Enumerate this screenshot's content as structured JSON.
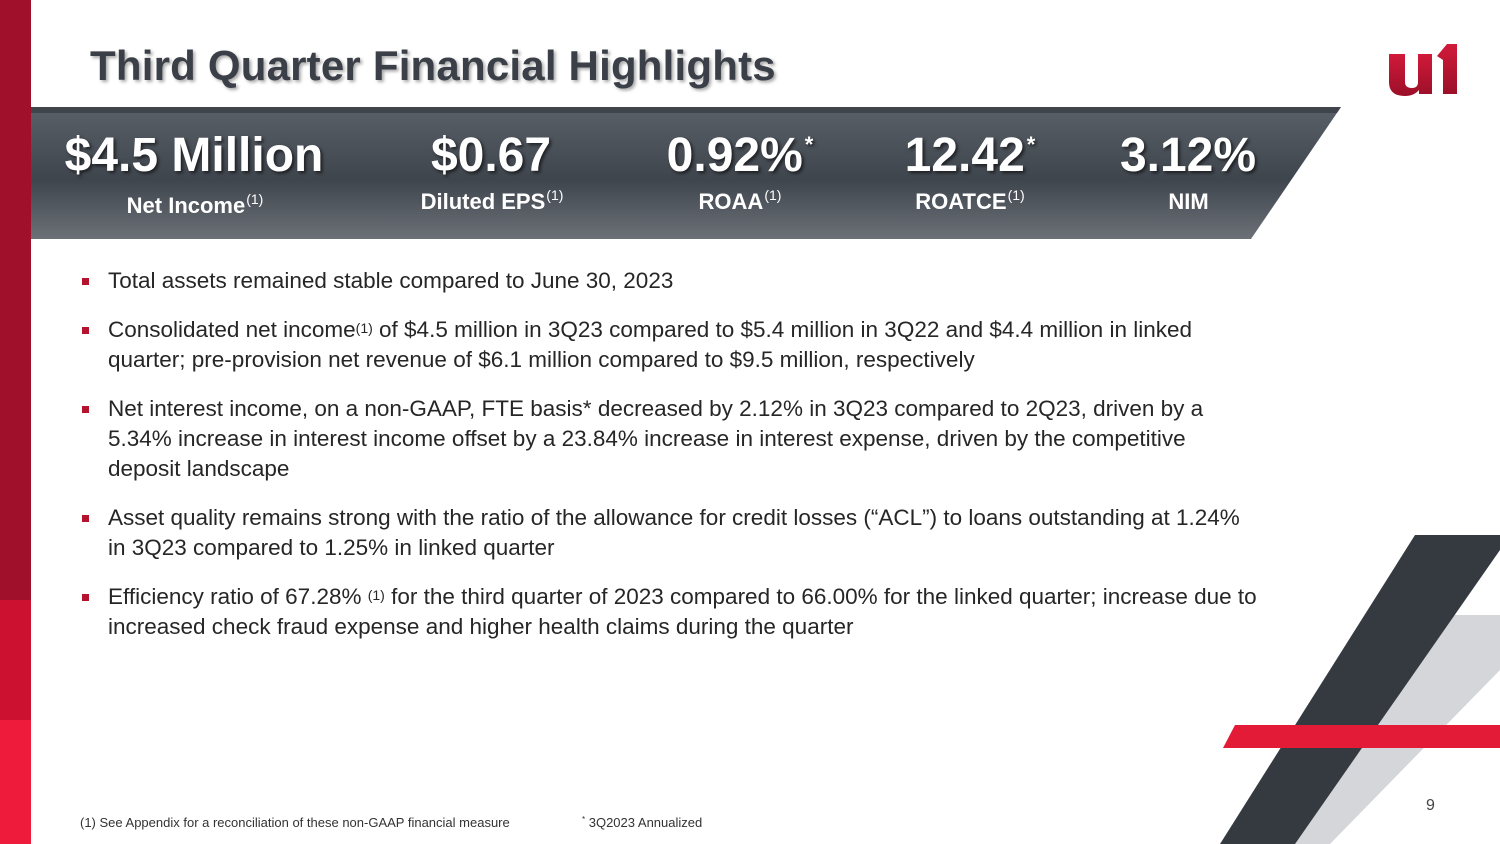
{
  "title": "Third Quarter Financial Highlights",
  "logo_text": "u1",
  "kpis": [
    {
      "value": "$4.5 Million",
      "value_mark": "",
      "label": "Net Income",
      "label_mark": "(1)"
    },
    {
      "value": "$0.67",
      "value_mark": "",
      "label": "Diluted EPS",
      "label_mark": "(1)"
    },
    {
      "value": "0.92%",
      "value_mark": "*",
      "label": "ROAA",
      "label_mark": "(1)"
    },
    {
      "value": "12.42",
      "value_mark": "*",
      "label": "ROATCE",
      "label_mark": "(1)"
    },
    {
      "value": "3.12%",
      "value_mark": "",
      "label": "NIM",
      "label_mark": ""
    }
  ],
  "bullets": {
    "b1": "Total assets remained stable compared to June 30, 2023",
    "b2_pre": "Consolidated net income",
    "b2_mark": "(1)",
    "b2_post": " of $4.5 million in 3Q23 compared to $5.4 million in 3Q22 and $4.4 million in linked quarter; pre-provision net revenue of $6.1 million compared to $9.5 million, respectively",
    "b3": "Net interest income, on a non-GAAP, FTE basis* decreased by 2.12% in 3Q23 compared to 2Q23, driven by a 5.34% increase in interest income offset by a 23.84% increase in interest expense, driven by the competitive deposit landscape",
    "b4": "Asset quality remains strong with the ratio of the allowance for credit losses (“ACL”) to loans outstanding at 1.24% in 3Q23 compared to 1.25% in linked quarter",
    "b5_pre": "Efficiency ratio of 67.28% ",
    "b5_mark": "(1)",
    "b5_post": " for the third quarter of 2023 compared to 66.00% for the linked quarter; increase due to increased check fraud expense and higher health claims during the quarter"
  },
  "page_number": "9",
  "footnotes": {
    "f1": "(1) See Appendix for a reconciliation of these non-GAAP financial measure",
    "f2_mark": "*",
    "f2": " 3Q2023 Annualized"
  },
  "colors": {
    "brand_red": "#b5122f",
    "banner_dark": "#3d434b",
    "title_gray": "#3b3f47"
  }
}
